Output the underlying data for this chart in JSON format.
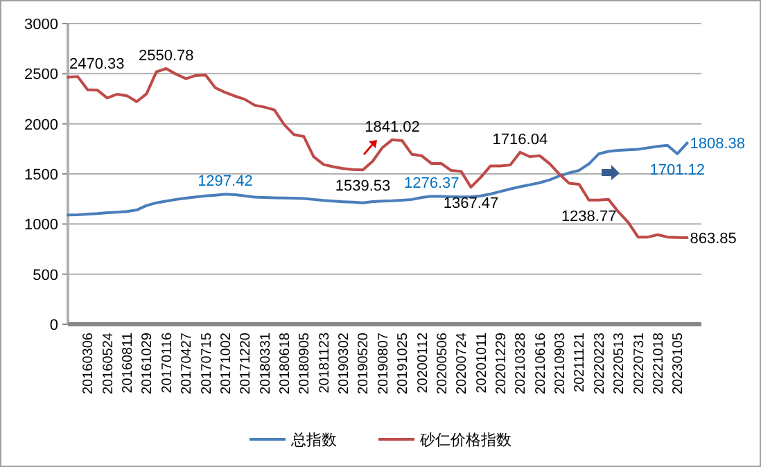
{
  "chart_data": {
    "type": "line",
    "categories": [
      null,
      null,
      "20160306",
      null,
      "20160524",
      null,
      "20160811",
      null,
      "20161029",
      null,
      "20170116",
      null,
      "20170427",
      null,
      "20170715",
      null,
      "20171002",
      null,
      "20171220",
      null,
      "20180331",
      null,
      "20180618",
      null,
      "20180905",
      null,
      "20181123",
      null,
      "20190302",
      null,
      "20190520",
      null,
      "20190807",
      null,
      "20191025",
      null,
      "20200112",
      null,
      "20200506",
      null,
      "20200724",
      null,
      "20201011",
      null,
      "20201229",
      null,
      "20210328",
      null,
      "20210616",
      null,
      "20210903",
      null,
      "20211121",
      null,
      "20220223",
      null,
      "20220513",
      null,
      "20220731",
      null,
      "20221018",
      null,
      "20230105",
      null
    ],
    "series": [
      {
        "name": "总指数",
        "color": "#4a7ebb",
        "values": [
          1090,
          1092,
          1099,
          1104,
          1113,
          1118,
          1125,
          1140,
          1185,
          1212,
          1228,
          1245,
          1258,
          1270,
          1280,
          1288,
          1297.42,
          1292,
          1280,
          1268,
          1265,
          1262,
          1260,
          1258,
          1255,
          1245,
          1235,
          1228,
          1222,
          1218,
          1212,
          1223,
          1228,
          1232,
          1238,
          1245,
          1265,
          1276.37,
          1275,
          1272,
          1270,
          1272,
          1280,
          1300,
          1325,
          1350,
          1372,
          1392,
          1412,
          1440,
          1480,
          1510,
          1535,
          1600,
          1700,
          1725,
          1735,
          1740,
          1745,
          1760,
          1775,
          1785,
          1701.12,
          1808.38
        ],
        "value_labels": [
          null,
          null,
          null,
          null,
          null,
          null,
          null,
          null,
          null,
          null,
          null,
          null,
          null,
          null,
          null,
          null,
          "1297.42",
          null,
          null,
          null,
          null,
          null,
          null,
          null,
          null,
          null,
          null,
          null,
          null,
          null,
          null,
          null,
          null,
          null,
          null,
          null,
          null,
          "1276.37",
          null,
          null,
          null,
          null,
          null,
          null,
          null,
          null,
          null,
          null,
          null,
          null,
          null,
          null,
          null,
          null,
          null,
          null,
          null,
          null,
          null,
          null,
          null,
          null,
          "1701.12",
          "1808.38"
        ]
      },
      {
        "name": "砂仁价格指数",
        "color": "#be4b48",
        "values": [
          2464,
          2470.33,
          2340,
          2336,
          2258,
          2295,
          2280,
          2221,
          2299,
          2519,
          2550.78,
          2496,
          2450,
          2482,
          2487,
          2359,
          2313,
          2276,
          2244,
          2185,
          2166,
          2139,
          1992,
          1892,
          1873,
          1672,
          1594,
          1571,
          1553,
          1543,
          1539.53,
          1626,
          1763,
          1841.02,
          1832,
          1695,
          1681,
          1603,
          1603,
          1534,
          1525,
          1367.47,
          1466,
          1580,
          1580,
          1589,
          1716.04,
          1672,
          1681,
          1603,
          1498,
          1406,
          1397,
          1238.77,
          1238.77,
          1246,
          1122,
          1017,
          870,
          870,
          893,
          870,
          865,
          863.85
        ],
        "value_labels": [
          null,
          "2470.33",
          null,
          null,
          null,
          null,
          null,
          null,
          null,
          null,
          "2550.78",
          null,
          null,
          null,
          null,
          null,
          null,
          null,
          null,
          null,
          null,
          null,
          null,
          null,
          null,
          null,
          null,
          null,
          null,
          null,
          "1539.53",
          null,
          null,
          "1841.02",
          null,
          null,
          null,
          null,
          null,
          null,
          null,
          "1367.47",
          null,
          null,
          null,
          null,
          "1716.04",
          null,
          null,
          null,
          null,
          null,
          null,
          "1238.77",
          null,
          null,
          null,
          null,
          null,
          null,
          null,
          null,
          null,
          "863.85"
        ]
      }
    ],
    "ylim": [
      0,
      3000
    ],
    "yticks": [
      0,
      500,
      1000,
      1500,
      2000,
      2500,
      3000
    ],
    "grid": "y",
    "legend": "bottom",
    "marker": "none",
    "line_style": "solid"
  }
}
